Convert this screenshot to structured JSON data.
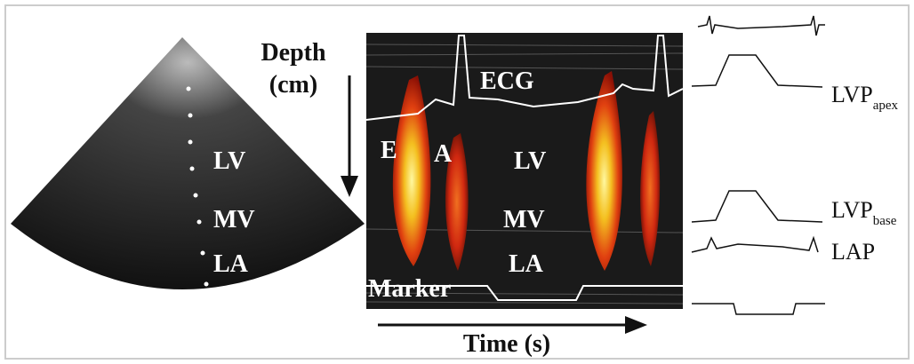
{
  "depth_axis": {
    "lines": [
      "Depth",
      "(cm)"
    ]
  },
  "sector": {
    "labels": [
      "LV",
      "MV",
      "LA"
    ]
  },
  "mmode": {
    "ecg": "ECG",
    "e_wave": "E",
    "a_wave": "A",
    "labels": [
      "LV",
      "MV",
      "LA"
    ],
    "marker": "Marker"
  },
  "time_axis": {
    "label": "Time (s)"
  },
  "traces": [
    {
      "name": "LVP",
      "subscript": "apex"
    },
    {
      "name": "LVP",
      "subscript": "base"
    },
    {
      "name": "LAP"
    }
  ]
}
